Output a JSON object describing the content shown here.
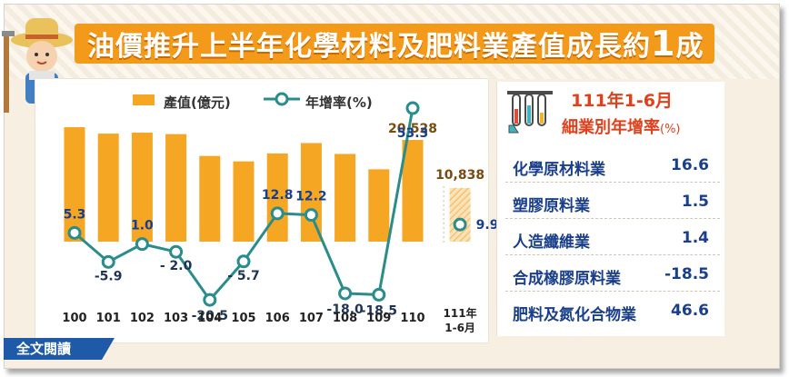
{
  "title": {
    "main": "油價推升上半年化學材料及肥料業產值成長約",
    "highlight": "1",
    "suffix": "成"
  },
  "legend": {
    "bar": "產值(億元)",
    "line": "年增率(%)"
  },
  "chart_data": {
    "type": "bar+line",
    "categories": [
      "100",
      "101",
      "102",
      "103",
      "104",
      "105",
      "106",
      "107",
      "108",
      "109",
      "110"
    ],
    "bar_series": {
      "name": "產值(億元)",
      "values": [
        23100,
        21800,
        22000,
        21700,
        17300,
        16200,
        17800,
        19900,
        17700,
        14600,
        20528
      ]
    },
    "bar_labels_shown": {
      "10": "20,528"
    },
    "line_series": {
      "name": "年增率(%)",
      "values": [
        5.3,
        -5.9,
        1.0,
        -2.0,
        -20.5,
        -5.7,
        12.8,
        12.2,
        -18.0,
        -18.5,
        53.3
      ],
      "labels": [
        "5.3",
        "-5.9",
        "1.0",
        "- 2.0",
        "-20.5",
        "- 5.7",
        "12.8",
        "12.2",
        "-18.0",
        "-18.5",
        "53.3"
      ]
    },
    "partial_period": {
      "category": "111年1-6月",
      "bar_value": 10838,
      "bar_label": "10,838",
      "growth": 9.9,
      "growth_label": "9.9"
    },
    "colors": {
      "bar": "#f5a623",
      "line": "#2b8c8c",
      "marker_fill": "#ffffff",
      "partial_bar": "#f5c272"
    }
  },
  "xaxis": {
    "labels": [
      "100",
      "101",
      "102",
      "103",
      "104",
      "105",
      "106",
      "107",
      "108",
      "109",
      "110"
    ],
    "partial_line1": "111年",
    "partial_line2": "1-6月"
  },
  "right_panel": {
    "title_line1": "111年1-6月",
    "title_line2": "細業別年增率",
    "title_unit": "(%)",
    "rows": [
      {
        "label": "化學原材料業",
        "value": "16.6"
      },
      {
        "label": "塑膠原料業",
        "value": "1.5"
      },
      {
        "label": "人造纖維業",
        "value": "1.4"
      },
      {
        "label": "合成橡膠原料業",
        "value": "-18.5"
      },
      {
        "label": "肥料及氮化合物業",
        "value": "46.6"
      }
    ]
  },
  "footer": {
    "fulltext": "全文閱讀"
  }
}
